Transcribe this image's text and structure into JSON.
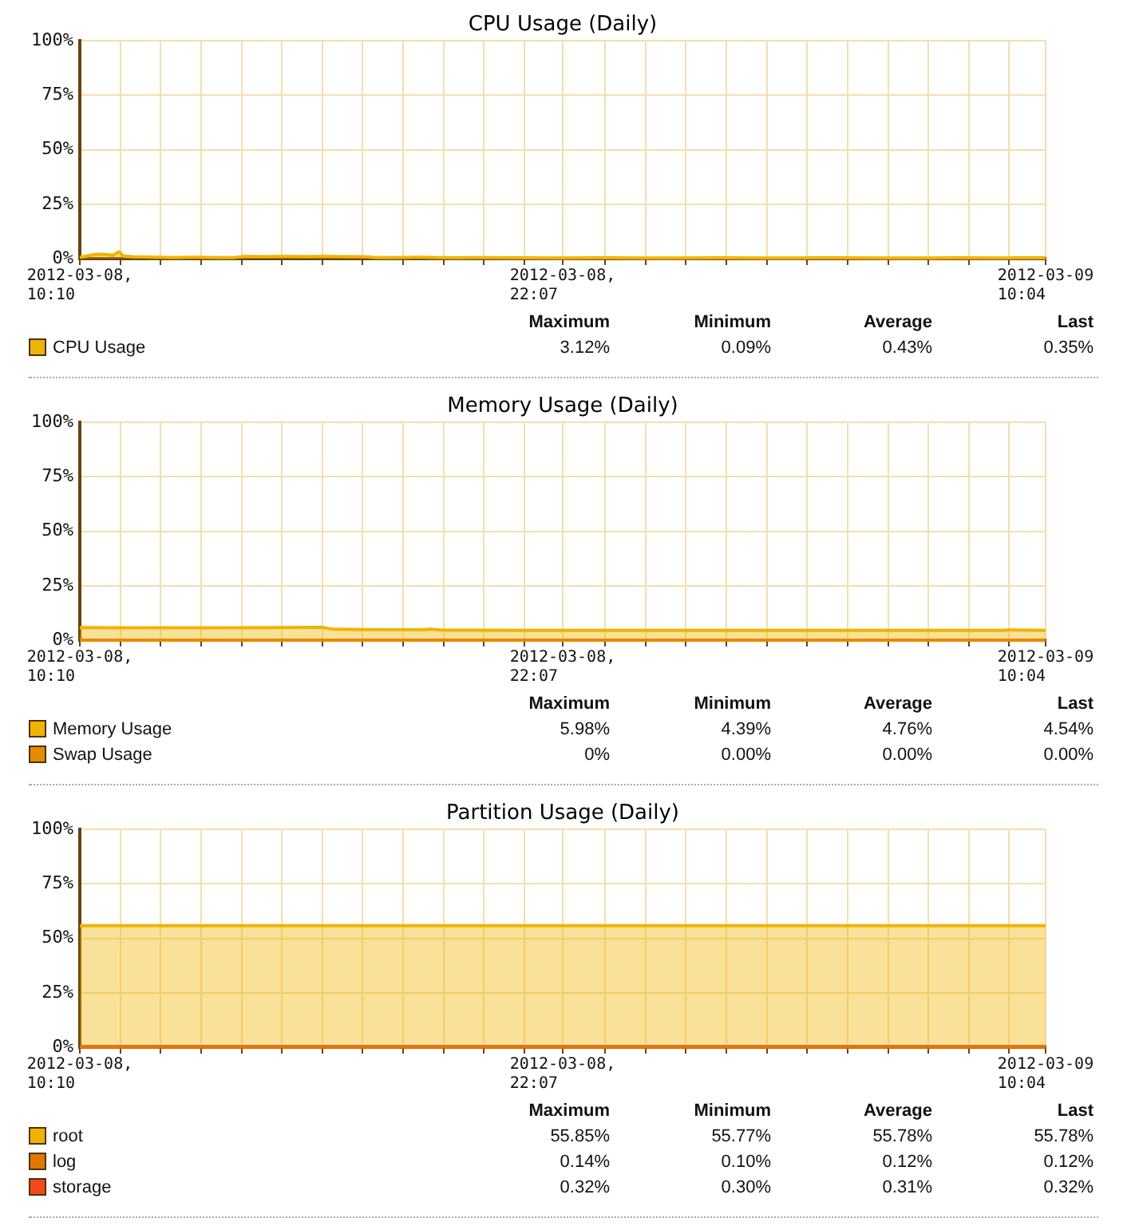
{
  "chart_data": [
    {
      "type": "area",
      "title": "CPU Usage (Daily)",
      "x": [
        "2012-03-08T10:10",
        "2012-03-08T10:20",
        "2012-03-08T10:30",
        "2012-03-08T10:40",
        "2012-03-08T10:50",
        "2012-03-08T11:00",
        "2012-03-08T11:08",
        "2012-03-08T11:15",
        "2012-03-08T11:30",
        "2012-03-08T12:00",
        "2012-03-08T12:30",
        "2012-03-08T13:00",
        "2012-03-08T13:30",
        "2012-03-08T14:00",
        "2012-03-08T14:15",
        "2012-03-08T14:45",
        "2012-03-08T15:15",
        "2012-03-08T15:45",
        "2012-03-08T16:15",
        "2012-03-08T16:45",
        "2012-03-08T17:15",
        "2012-03-08T17:30",
        "2012-03-08T18:00",
        "2012-03-08T18:30",
        "2012-03-08T19:00",
        "2012-03-08T19:30",
        "2012-03-08T20:00",
        "2012-03-08T21:00",
        "2012-03-08T22:00",
        "2012-03-08T23:00",
        "2012-03-09T00:00",
        "2012-03-09T01:00",
        "2012-03-09T02:00",
        "2012-03-09T03:00",
        "2012-03-09T04:00",
        "2012-03-09T05:00",
        "2012-03-09T06:00",
        "2012-03-09T07:00",
        "2012-03-09T08:00",
        "2012-03-09T09:00",
        "2012-03-09T10:04"
      ],
      "series": [
        {
          "name": "CPU Usage",
          "color": "#f0b400",
          "values": [
            0.5,
            1.2,
            1.8,
            2.0,
            1.8,
            1.6,
            3.1,
            1.2,
            0.8,
            0.6,
            0.5,
            0.6,
            0.5,
            0.5,
            1.0,
            0.9,
            1.0,
            0.9,
            1.0,
            0.9,
            0.8,
            0.5,
            0.5,
            0.6,
            0.5,
            0.4,
            0.5,
            0.4,
            0.3,
            0.4,
            0.3,
            0.3,
            0.4,
            0.3,
            0.3,
            0.4,
            0.3,
            0.3,
            0.4,
            0.3,
            0.4
          ]
        }
      ],
      "xlim": [
        "2012-03-08T10:10",
        "2012-03-09T10:04"
      ],
      "xticks": [
        {
          "value": "2012-03-08T10:10",
          "label": "2012-03-08, 10:10"
        },
        {
          "value": "2012-03-08T11:10",
          "label": null
        },
        {
          "value": "2012-03-08T12:10",
          "label": null
        },
        {
          "value": "2012-03-08T13:10",
          "label": null
        },
        {
          "value": "2012-03-08T14:10",
          "label": null
        },
        {
          "value": "2012-03-08T15:10",
          "label": null
        },
        {
          "value": "2012-03-08T16:10",
          "label": null
        },
        {
          "value": "2012-03-08T17:10",
          "label": null
        },
        {
          "value": "2012-03-08T18:10",
          "label": null
        },
        {
          "value": "2012-03-08T19:10",
          "label": null
        },
        {
          "value": "2012-03-08T20:10",
          "label": null
        },
        {
          "value": "2012-03-08T21:10",
          "label": null
        },
        {
          "value": "2012-03-08T22:07",
          "label": "2012-03-08, 22:07"
        },
        {
          "value": "2012-03-08T23:10",
          "label": null
        },
        {
          "value": "2012-03-09T00:10",
          "label": null
        },
        {
          "value": "2012-03-09T01:10",
          "label": null
        },
        {
          "value": "2012-03-09T02:10",
          "label": null
        },
        {
          "value": "2012-03-09T03:10",
          "label": null
        },
        {
          "value": "2012-03-09T04:10",
          "label": null
        },
        {
          "value": "2012-03-09T05:10",
          "label": null
        },
        {
          "value": "2012-03-09T06:10",
          "label": null
        },
        {
          "value": "2012-03-09T07:10",
          "label": null
        },
        {
          "value": "2012-03-09T08:10",
          "label": null
        },
        {
          "value": "2012-03-09T09:10",
          "label": null
        },
        {
          "value": "2012-03-09T10:04",
          "label": "2012-03-09 10:04"
        }
      ],
      "ylim": [
        0,
        100
      ],
      "yticks": [
        {
          "value": 0,
          "label": "0%"
        },
        {
          "value": 25,
          "label": "25%"
        },
        {
          "value": 50,
          "label": "50%"
        },
        {
          "value": 75,
          "label": "75%"
        },
        {
          "value": 100,
          "label": "100%"
        }
      ],
      "grid": true,
      "legend": "bottom left",
      "annotations": [
        "Maximum",
        "Minimum",
        "Average",
        "Last",
        "3.12%",
        "0.09%",
        "0.43%",
        "0.35%"
      ]
    },
    {
      "type": "area",
      "title": "Memory Usage (Daily)",
      "x": [
        "2012-03-08T10:10",
        "2012-03-08T11:00",
        "2012-03-08T12:00",
        "2012-03-08T13:00",
        "2012-03-08T14:00",
        "2012-03-08T15:00",
        "2012-03-08T15:50",
        "2012-03-08T16:10",
        "2012-03-08T16:25",
        "2012-03-08T17:00",
        "2012-03-08T18:00",
        "2012-03-08T18:40",
        "2012-03-08T18:50",
        "2012-03-08T19:10",
        "2012-03-08T20:00",
        "2012-03-08T21:00",
        "2012-03-08T22:00",
        "2012-03-08T23:00",
        "2012-03-09T00:00",
        "2012-03-09T01:00",
        "2012-03-09T02:00",
        "2012-03-09T03:00",
        "2012-03-09T04:00",
        "2012-03-09T05:00",
        "2012-03-09T06:00",
        "2012-03-09T07:00",
        "2012-03-09T08:00",
        "2012-03-09T09:00",
        "2012-03-09T09:10",
        "2012-03-09T10:04"
      ],
      "series": [
        {
          "name": "Memory Usage",
          "color": "#f0b400",
          "values": [
            5.8,
            5.7,
            5.7,
            5.7,
            5.7,
            5.8,
            5.9,
            5.9,
            5.0,
            4.9,
            4.8,
            4.8,
            5.0,
            4.6,
            4.6,
            4.5,
            4.5,
            4.5,
            4.5,
            4.5,
            4.5,
            4.5,
            4.5,
            4.5,
            4.5,
            4.5,
            4.5,
            4.5,
            4.7,
            4.5
          ]
        },
        {
          "name": "Swap Usage",
          "type": "line",
          "color": "#e68a00",
          "values": [
            0,
            0,
            0,
            0,
            0,
            0,
            0,
            0,
            0,
            0,
            0,
            0,
            0,
            0,
            0,
            0,
            0,
            0,
            0,
            0,
            0,
            0,
            0,
            0,
            0,
            0,
            0,
            0,
            0,
            0
          ]
        }
      ],
      "xlim": [
        "2012-03-08T10:10",
        "2012-03-09T10:04"
      ],
      "xticks": [
        {
          "value": "2012-03-08T10:10",
          "label": "2012-03-08, 10:10"
        },
        {
          "value": "2012-03-08T11:10",
          "label": null
        },
        {
          "value": "2012-03-08T12:10",
          "label": null
        },
        {
          "value": "2012-03-08T13:10",
          "label": null
        },
        {
          "value": "2012-03-08T14:10",
          "label": null
        },
        {
          "value": "2012-03-08T15:10",
          "label": null
        },
        {
          "value": "2012-03-08T16:10",
          "label": null
        },
        {
          "value": "2012-03-08T17:10",
          "label": null
        },
        {
          "value": "2012-03-08T18:10",
          "label": null
        },
        {
          "value": "2012-03-08T19:10",
          "label": null
        },
        {
          "value": "2012-03-08T20:10",
          "label": null
        },
        {
          "value": "2012-03-08T21:10",
          "label": null
        },
        {
          "value": "2012-03-08T22:07",
          "label": "2012-03-08, 22:07"
        },
        {
          "value": "2012-03-08T23:10",
          "label": null
        },
        {
          "value": "2012-03-09T00:10",
          "label": null
        },
        {
          "value": "2012-03-09T01:10",
          "label": null
        },
        {
          "value": "2012-03-09T02:10",
          "label": null
        },
        {
          "value": "2012-03-09T03:10",
          "label": null
        },
        {
          "value": "2012-03-09T04:10",
          "label": null
        },
        {
          "value": "2012-03-09T05:10",
          "label": null
        },
        {
          "value": "2012-03-09T06:10",
          "label": null
        },
        {
          "value": "2012-03-09T07:10",
          "label": null
        },
        {
          "value": "2012-03-09T08:10",
          "label": null
        },
        {
          "value": "2012-03-09T09:10",
          "label": null
        },
        {
          "value": "2012-03-09T10:04",
          "label": "2012-03-09 10:04"
        }
      ],
      "ylim": [
        0,
        100
      ],
      "yticks": [
        {
          "value": 0,
          "label": "0%"
        },
        {
          "value": 25,
          "label": "25%"
        },
        {
          "value": 50,
          "label": "50%"
        },
        {
          "value": 75,
          "label": "75%"
        },
        {
          "value": 100,
          "label": "100%"
        }
      ],
      "grid": true,
      "legend": "bottom left",
      "annotations": [
        "Maximum",
        "Minimum",
        "Average",
        "Last",
        "5.98%",
        "4.39%",
        "4.76%",
        "4.54%",
        "0%",
        "0.00%",
        "0.00%",
        "0.00%"
      ]
    },
    {
      "type": "area",
      "title": "Partition Usage (Daily)",
      "x": [
        "2012-03-08T10:10",
        "2012-03-08T13:10",
        "2012-03-08T16:10",
        "2012-03-08T19:10",
        "2012-03-08T22:10",
        "2012-03-09T01:10",
        "2012-03-09T04:10",
        "2012-03-09T07:10",
        "2012-03-09T10:04"
      ],
      "series": [
        {
          "name": "root",
          "color": "#f0b400",
          "values": [
            55.8,
            55.8,
            55.8,
            55.8,
            55.8,
            55.8,
            55.8,
            55.8,
            55.8
          ]
        },
        {
          "name": "log",
          "type": "line",
          "color": "#e07800",
          "values": [
            0.1,
            0.1,
            0.1,
            0.1,
            0.1,
            0.1,
            0.1,
            0.1,
            0.1
          ]
        },
        {
          "name": "storage",
          "type": "line",
          "color": "#f24a1a",
          "values": [
            0.3,
            0.3,
            0.3,
            0.3,
            0.3,
            0.3,
            0.3,
            0.3,
            0.3
          ]
        }
      ],
      "xlim": [
        "2012-03-08T10:10",
        "2012-03-09T10:04"
      ],
      "xticks": [
        {
          "value": "2012-03-08T10:10",
          "label": "2012-03-08, 10:10"
        },
        {
          "value": "2012-03-08T11:10",
          "label": null
        },
        {
          "value": "2012-03-08T12:10",
          "label": null
        },
        {
          "value": "2012-03-08T13:10",
          "label": null
        },
        {
          "value": "2012-03-08T14:10",
          "label": null
        },
        {
          "value": "2012-03-08T15:10",
          "label": null
        },
        {
          "value": "2012-03-08T16:10",
          "label": null
        },
        {
          "value": "2012-03-08T17:10",
          "label": null
        },
        {
          "value": "2012-03-08T18:10",
          "label": null
        },
        {
          "value": "2012-03-08T19:10",
          "label": null
        },
        {
          "value": "2012-03-08T20:10",
          "label": null
        },
        {
          "value": "2012-03-08T21:10",
          "label": null
        },
        {
          "value": "2012-03-08T22:07",
          "label": "2012-03-08, 22:07"
        },
        {
          "value": "2012-03-08T23:10",
          "label": null
        },
        {
          "value": "2012-03-09T00:10",
          "label": null
        },
        {
          "value": "2012-03-09T01:10",
          "label": null
        },
        {
          "value": "2012-03-09T02:10",
          "label": null
        },
        {
          "value": "2012-03-09T03:10",
          "label": null
        },
        {
          "value": "2012-03-09T04:10",
          "label": null
        },
        {
          "value": "2012-03-09T05:10",
          "label": null
        },
        {
          "value": "2012-03-09T06:10",
          "label": null
        },
        {
          "value": "2012-03-09T07:10",
          "label": null
        },
        {
          "value": "2012-03-09T08:10",
          "label": null
        },
        {
          "value": "2012-03-09T09:10",
          "label": null
        },
        {
          "value": "2012-03-09T10:04",
          "label": "2012-03-09 10:04"
        }
      ],
      "ylim": [
        0,
        100
      ],
      "yticks": [
        {
          "value": 0,
          "label": "0%"
        },
        {
          "value": 25,
          "label": "25%"
        },
        {
          "value": 50,
          "label": "50%"
        },
        {
          "value": 75,
          "label": "75%"
        },
        {
          "value": 100,
          "label": "100%"
        }
      ],
      "grid": true,
      "legend": "bottom left",
      "annotations": [
        "Maximum",
        "Minimum",
        "Average",
        "Last",
        "55.85%",
        "55.77%",
        "55.78%",
        "55.78%",
        "0.14%",
        "0.10%",
        "0.12%",
        "0.12%",
        "0.32%",
        "0.30%",
        "0.31%",
        "0.32%"
      ]
    }
  ]
}
